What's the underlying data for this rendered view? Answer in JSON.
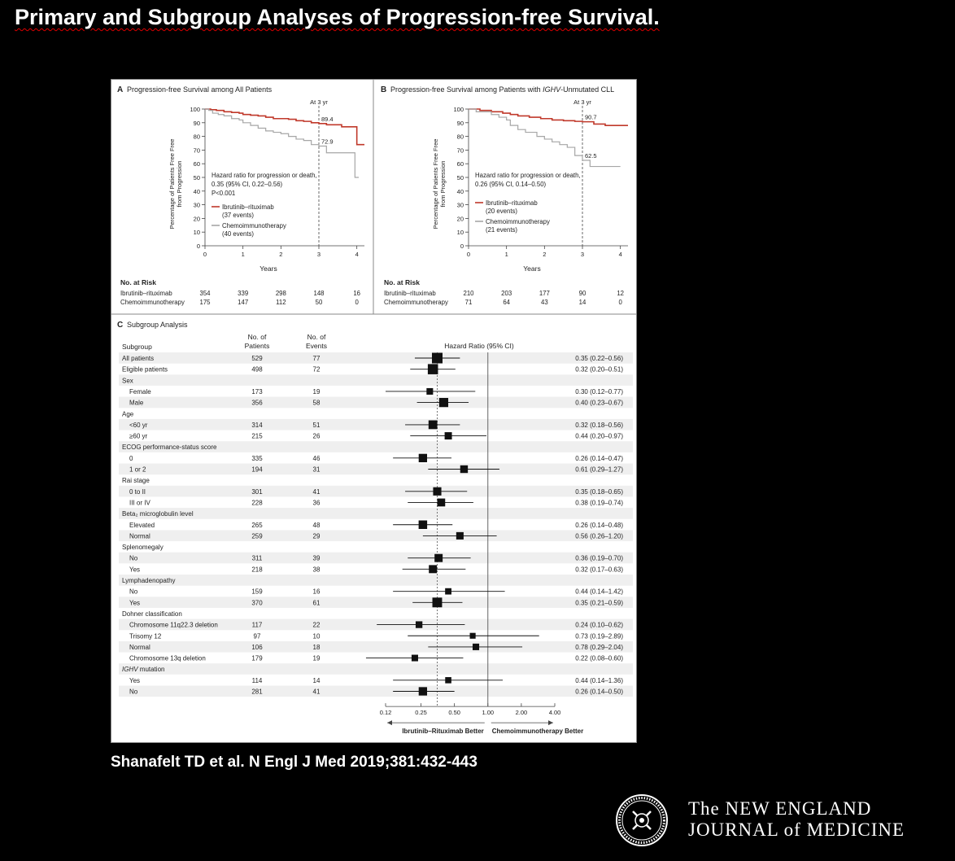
{
  "slide": {
    "title": "Primary and Subgroup Analyses of Progression-free Survival.",
    "citation": "Shanafelt TD et al. N Engl J Med 2019;381:432-443",
    "brand_line1": "The NEW ENGLAND",
    "brand_line2": "JOURNAL of MEDICINE"
  },
  "colors": {
    "ibrutinib": "#c0392b",
    "chemo": "#a6a6a6",
    "marker": "#111111",
    "background": "#000000",
    "panel": "#ffffff"
  },
  "chart_data": [
    {
      "type": "line",
      "panel": "A",
      "title": "Progression-free Survival among All Patients",
      "ylabel": "Percentage of Patients Free from Progression",
      "xlabel": "Years",
      "xlim": [
        0,
        4.2
      ],
      "ylim": [
        0,
        100
      ],
      "x_ticks": [
        "0",
        "1",
        "2",
        "3",
        "4"
      ],
      "y_ticks": [
        "0",
        "10",
        "20",
        "30",
        "40",
        "50",
        "60",
        "70",
        "80",
        "90",
        "100"
      ],
      "reference_label": "At 3 yr",
      "reference_x": 3,
      "value_labels": [
        "89.4",
        "72.9"
      ],
      "hazard_text": [
        "Hazard ratio for progression or death,",
        "0.35 (95% CI, 0.22–0.56)",
        "P<0.001"
      ],
      "series": [
        {
          "name": "Ibrutinib–rituximab",
          "events": "(37 events)",
          "color": "#c0392b",
          "x": [
            0,
            0.15,
            0.3,
            0.5,
            0.7,
            0.9,
            1.0,
            1.2,
            1.4,
            1.6,
            1.8,
            2.0,
            2.2,
            2.4,
            2.6,
            2.8,
            3.0,
            3.2,
            3.4,
            3.6,
            3.8,
            4.0,
            4.2
          ],
          "y": [
            100,
            99.5,
            99,
            98,
            97.5,
            97,
            96,
            95.5,
            95,
            94,
            93,
            93,
            92.5,
            91.5,
            91,
            90,
            89.4,
            88.5,
            88.5,
            87,
            87,
            74,
            74
          ]
        },
        {
          "name": "Chemoimmunotherapy",
          "events": "(40 events)",
          "color": "#a6a6a6",
          "x": [
            0,
            0.1,
            0.2,
            0.35,
            0.5,
            0.7,
            0.9,
            1.0,
            1.2,
            1.4,
            1.6,
            1.8,
            2.0,
            2.2,
            2.4,
            2.6,
            2.8,
            3.0,
            3.2,
            3.5,
            3.8,
            3.95,
            4.05
          ],
          "y": [
            100,
            99,
            97,
            96,
            95,
            93,
            92,
            90,
            88,
            86,
            84,
            83,
            82,
            80,
            78,
            77,
            74,
            72.9,
            68,
            68,
            68,
            50,
            50
          ]
        }
      ],
      "risk_header": "No. at Risk",
      "risk_table": [
        {
          "label": "Ibrutinib–rituximab",
          "values": [
            "354",
            "339",
            "298",
            "148",
            "16"
          ]
        },
        {
          "label": "Chemoimmunotherapy",
          "values": [
            "175",
            "147",
            "112",
            "50",
            "0"
          ]
        }
      ]
    },
    {
      "type": "line",
      "panel": "B",
      "title": "Progression-free Survival among Patients with",
      "title_italic": "IGHV",
      "title_end": "-Unmutated CLL",
      "ylabel": "Percentage of Patients Free from Progression",
      "xlabel": "Years",
      "xlim": [
        0,
        4.2
      ],
      "ylim": [
        0,
        100
      ],
      "x_ticks": [
        "0",
        "1",
        "2",
        "3",
        "4"
      ],
      "y_ticks": [
        "0",
        "10",
        "20",
        "30",
        "40",
        "50",
        "60",
        "70",
        "80",
        "90",
        "100"
      ],
      "reference_label": "At 3 yr",
      "reference_x": 3,
      "value_labels": [
        "90.7",
        "62.5"
      ],
      "hazard_text": [
        "Hazard ratio for progression or death,",
        "0.26 (95% CI, 0.14–0.50)"
      ],
      "series": [
        {
          "name": "Ibrutinib–rituximab",
          "events": "(20 events)",
          "color": "#c0392b",
          "x": [
            0,
            0.3,
            0.6,
            0.9,
            1.1,
            1.3,
            1.6,
            1.9,
            2.2,
            2.5,
            2.8,
            3.0,
            3.3,
            3.6,
            4.0,
            4.2
          ],
          "y": [
            100,
            99,
            98,
            97,
            96,
            95,
            94,
            93,
            92,
            91.5,
            91,
            90.7,
            89,
            88,
            88,
            88
          ]
        },
        {
          "name": "Chemoimmunotherapy",
          "events": "(21 events)",
          "color": "#a6a6a6",
          "x": [
            0,
            0.2,
            0.4,
            0.6,
            0.8,
            1.0,
            1.1,
            1.3,
            1.5,
            1.8,
            2.0,
            2.2,
            2.4,
            2.6,
            2.8,
            3.0,
            3.2,
            3.6,
            4.0
          ],
          "y": [
            100,
            98,
            98,
            96,
            94,
            92,
            88,
            85,
            83,
            80,
            78,
            76,
            74,
            72,
            66,
            62.5,
            58,
            58,
            58
          ]
        }
      ],
      "risk_header": "No. at Risk",
      "risk_table": [
        {
          "label": "Ibrutinib–rituximab",
          "values": [
            "210",
            "203",
            "177",
            "90",
            "12"
          ]
        },
        {
          "label": "Chemoimmunotherapy",
          "values": [
            "71",
            "64",
            "43",
            "14",
            "0"
          ]
        }
      ]
    },
    {
      "type": "forest",
      "panel": "C",
      "title": "Subgroup Analysis",
      "col_subgroup": "Subgroup",
      "col_patients": [
        "No. of",
        "Patients"
      ],
      "col_events": [
        "No. of",
        "Events"
      ],
      "col_hr": "Hazard Ratio (95% CI)",
      "x_scale": "log",
      "x_ticks": [
        0.12,
        0.25,
        0.5,
        1.0,
        2.0,
        4.0
      ],
      "x_tick_labels": [
        "0.12",
        "0.25",
        "0.50",
        "1.00",
        "2.00",
        "4.00"
      ],
      "xlim": [
        0.12,
        4.0
      ],
      "overall_hr": 0.35,
      "left_label": "Ibrutinib–Rituximab Better",
      "right_label": "Chemoimmunotherapy Better",
      "rows": [
        {
          "label": "All patients",
          "n": "529",
          "events": "77",
          "hr": 0.35,
          "lo": 0.22,
          "hi": 0.56,
          "text": "0.35 (0.22–0.56)",
          "size": 1
        },
        {
          "label": "Eligible patients",
          "n": "498",
          "events": "72",
          "hr": 0.32,
          "lo": 0.2,
          "hi": 0.51,
          "text": "0.32 (0.20–0.51)",
          "size": 0.95
        },
        {
          "label": "Sex",
          "header": true
        },
        {
          "label": "Female",
          "indent": true,
          "n": "173",
          "events": "19",
          "hr": 0.3,
          "lo": 0.12,
          "hi": 0.77,
          "text": "0.30 (0.12–0.77)",
          "size": 0.45
        },
        {
          "label": "Male",
          "indent": true,
          "n": "356",
          "events": "58",
          "hr": 0.4,
          "lo": 0.23,
          "hi": 0.67,
          "text": "0.40 (0.23–0.67)",
          "size": 0.8
        },
        {
          "label": "Age",
          "header": true
        },
        {
          "label": "<60 yr",
          "indent": true,
          "n": "314",
          "events": "51",
          "hr": 0.32,
          "lo": 0.18,
          "hi": 0.56,
          "text": "0.32 (0.18–0.56)",
          "size": 0.75
        },
        {
          "label": "≥60 yr",
          "indent": true,
          "n": "215",
          "events": "26",
          "hr": 0.44,
          "lo": 0.2,
          "hi": 0.97,
          "text": "0.44 (0.20–0.97)",
          "size": 0.55
        },
        {
          "label": "ECOG performance-status score",
          "header": true
        },
        {
          "label": "0",
          "indent": true,
          "n": "335",
          "events": "46",
          "hr": 0.26,
          "lo": 0.14,
          "hi": 0.47,
          "text": "0.26 (0.14–0.47)",
          "size": 0.7
        },
        {
          "label": "1 or 2",
          "indent": true,
          "n": "194",
          "events": "31",
          "hr": 0.61,
          "lo": 0.29,
          "hi": 1.27,
          "text": "0.61 (0.29–1.27)",
          "size": 0.6
        },
        {
          "label": "Rai stage",
          "header": true
        },
        {
          "label": "0 to II",
          "indent": true,
          "n": "301",
          "events": "41",
          "hr": 0.35,
          "lo": 0.18,
          "hi": 0.65,
          "text": "0.35 (0.18–0.65)",
          "size": 0.68
        },
        {
          "label": "III or IV",
          "indent": true,
          "n": "228",
          "events": "36",
          "hr": 0.38,
          "lo": 0.19,
          "hi": 0.74,
          "text": "0.38 (0.19–0.74)",
          "size": 0.64
        },
        {
          "label": "Beta₂ microglobulin level",
          "header": true
        },
        {
          "label": "Elevated",
          "indent": true,
          "n": "265",
          "events": "48",
          "hr": 0.26,
          "lo": 0.14,
          "hi": 0.48,
          "text": "0.26 (0.14–0.48)",
          "size": 0.72
        },
        {
          "label": "Normal",
          "indent": true,
          "n": "259",
          "events": "29",
          "hr": 0.56,
          "lo": 0.26,
          "hi": 1.2,
          "text": "0.56 (0.26–1.20)",
          "size": 0.56
        },
        {
          "label": "Splenomegaly",
          "header": true
        },
        {
          "label": "No",
          "indent": true,
          "n": "311",
          "events": "39",
          "hr": 0.36,
          "lo": 0.19,
          "hi": 0.7,
          "text": "0.36 (0.19–0.70)",
          "size": 0.66
        },
        {
          "label": "Yes",
          "indent": true,
          "n": "218",
          "events": "38",
          "hr": 0.32,
          "lo": 0.17,
          "hi": 0.63,
          "text": "0.32 (0.17–0.63)",
          "size": 0.66
        },
        {
          "label": "Lymphadenopathy",
          "header": true
        },
        {
          "label": "No",
          "indent": true,
          "n": "159",
          "events": "16",
          "hr": 0.44,
          "lo": 0.14,
          "hi": 1.42,
          "text": "0.44 (0.14–1.42)",
          "size": 0.42
        },
        {
          "label": "Yes",
          "indent": true,
          "n": "370",
          "events": "61",
          "hr": 0.35,
          "lo": 0.21,
          "hi": 0.59,
          "text": "0.35 (0.21–0.59)",
          "size": 0.88
        },
        {
          "label": "Dohner classification",
          "header": true
        },
        {
          "label": "Chromosome 11q22.3 deletion",
          "indent": true,
          "n": "117",
          "events": "22",
          "hr": 0.24,
          "lo": 0.1,
          "hi": 0.62,
          "text": "0.24 (0.10–0.62)",
          "size": 0.48
        },
        {
          "label": "Trisomy 12",
          "indent": true,
          "n": "97",
          "events": "10",
          "hr": 0.73,
          "lo": 0.19,
          "hi": 2.89,
          "text": "0.73 (0.19–2.89)",
          "size": 0.35
        },
        {
          "label": "Normal",
          "indent": true,
          "n": "106",
          "events": "18",
          "hr": 0.78,
          "lo": 0.29,
          "hi": 2.04,
          "text": "0.78 (0.29–2.04)",
          "size": 0.45
        },
        {
          "label": "Chromosome 13q deletion",
          "indent": true,
          "n": "179",
          "events": "19",
          "hr": 0.22,
          "lo": 0.08,
          "hi": 0.6,
          "text": "0.22 (0.08–0.60)",
          "size": 0.45
        },
        {
          "label": "IGHV mutation",
          "header": true,
          "italic_prefix": "IGHV"
        },
        {
          "label": "Yes",
          "indent": true,
          "n": "114",
          "events": "14",
          "hr": 0.44,
          "lo": 0.14,
          "hi": 1.36,
          "text": "0.44 (0.14–1.36)",
          "size": 0.4
        },
        {
          "label": "No",
          "indent": true,
          "n": "281",
          "events": "41",
          "hr": 0.26,
          "lo": 0.14,
          "hi": 0.5,
          "text": "0.26 (0.14–0.50)",
          "size": 0.7
        }
      ]
    }
  ]
}
